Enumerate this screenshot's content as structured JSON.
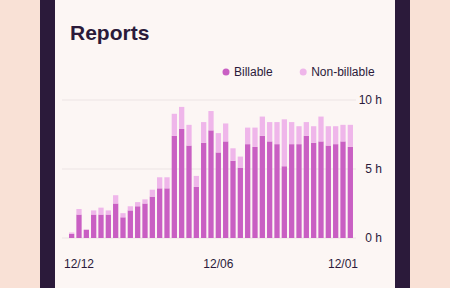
{
  "chart_data": {
    "type": "bar",
    "title": "Reports",
    "stacked": true,
    "grid": true,
    "legend": "top-right",
    "categories": [
      null,
      "12/12",
      null,
      null,
      null,
      null,
      null,
      null,
      null,
      null,
      null,
      null,
      null,
      null,
      null,
      null,
      null,
      null,
      null,
      null,
      "12/06",
      null,
      null,
      null,
      null,
      null,
      null,
      null,
      null,
      null,
      null,
      null,
      null,
      null,
      null,
      null,
      null,
      "12/01",
      null
    ],
    "series": [
      {
        "name": "Billable",
        "color": "#c95fc3",
        "values": [
          0.3,
          1.7,
          0.6,
          1.7,
          1.7,
          1.7,
          2.5,
          1.5,
          2.0,
          2.3,
          2.5,
          3.0,
          3.6,
          3.6,
          7.4,
          7.9,
          6.7,
          3.7,
          6.9,
          7.8,
          6.2,
          7.0,
          5.6,
          5.1,
          6.8,
          6.6,
          7.4,
          7.0,
          6.8,
          5.2,
          6.8,
          6.8,
          7.4,
          6.9,
          7.0,
          6.7,
          6.8,
          7.0,
          6.6
        ]
      },
      {
        "name": "Non-billable",
        "color": "#efb6ea",
        "values": [
          0.1,
          0.4,
          0.0,
          0.3,
          0.5,
          0.3,
          0.6,
          0.3,
          0.3,
          0.3,
          0.3,
          0.5,
          0.8,
          0.8,
          1.6,
          1.6,
          1.5,
          0.8,
          1.5,
          1.4,
          1.4,
          1.3,
          0.9,
          0.8,
          1.2,
          1.4,
          1.4,
          1.4,
          1.6,
          3.4,
          1.6,
          1.3,
          1.0,
          1.2,
          1.8,
          1.4,
          1.3,
          1.2,
          1.6
        ]
      }
    ],
    "ylim": [
      0,
      10
    ],
    "yticks": [
      {
        "value": 0,
        "label": "0 h"
      },
      {
        "value": 5,
        "label": "5 h"
      },
      {
        "value": 10,
        "label": "10 h"
      }
    ]
  }
}
